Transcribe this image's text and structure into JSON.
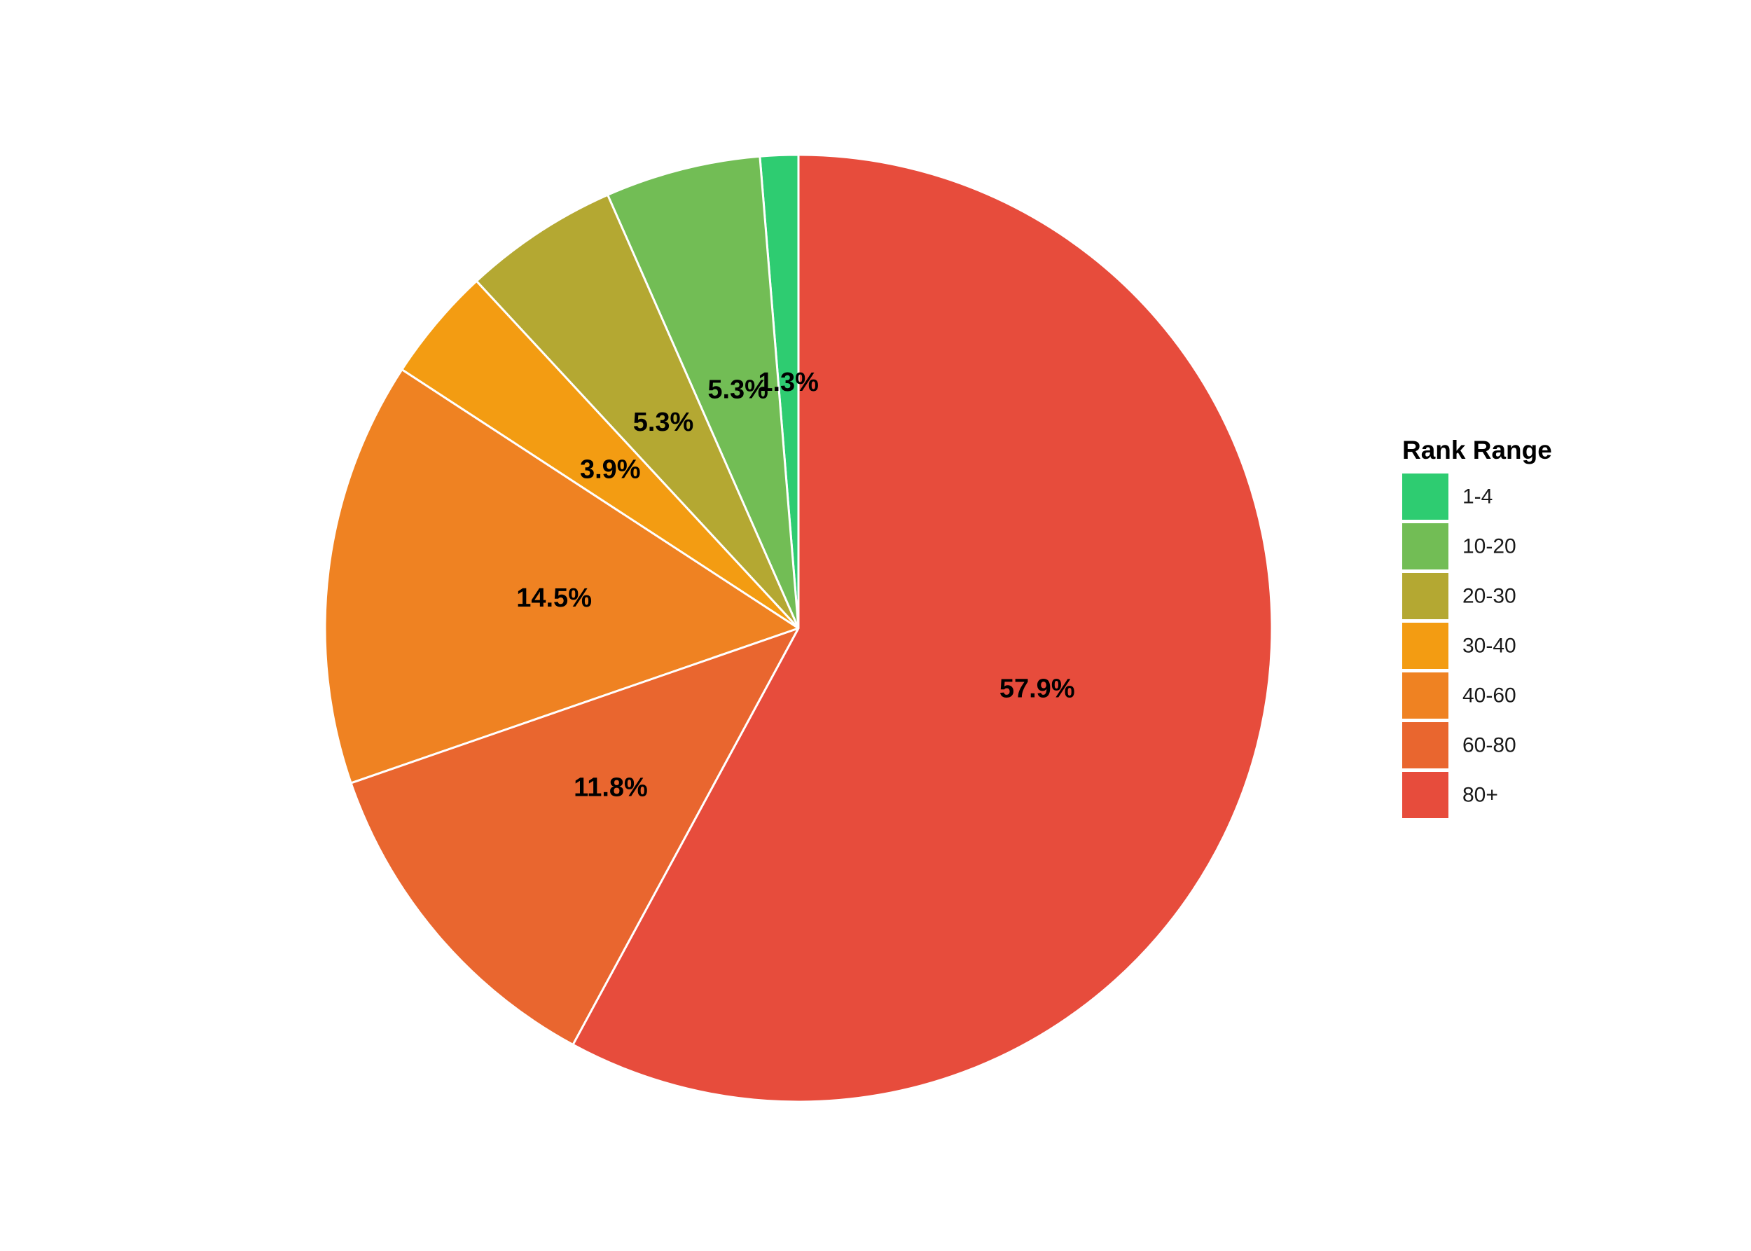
{
  "chart_data": {
    "type": "pie",
    "title": "",
    "legend_title": "Rank Range",
    "legend_position": "right",
    "categories": [
      "1-4",
      "10-20",
      "20-30",
      "30-40",
      "40-60",
      "60-80",
      "80+"
    ],
    "values": [
      1.3,
      5.3,
      5.3,
      3.9,
      14.5,
      11.8,
      57.9
    ],
    "labels": [
      "1.3%",
      "5.3%",
      "5.3%",
      "3.9%",
      "14.5%",
      "11.8%",
      "57.9%"
    ],
    "colors": [
      "#2ecc71",
      "#72bd55",
      "#b4a832",
      "#f39c12",
      "#ef8222",
      "#e9662f",
      "#e74c3c"
    ],
    "direction": "counterclockwise",
    "start": "12 o'clock"
  }
}
